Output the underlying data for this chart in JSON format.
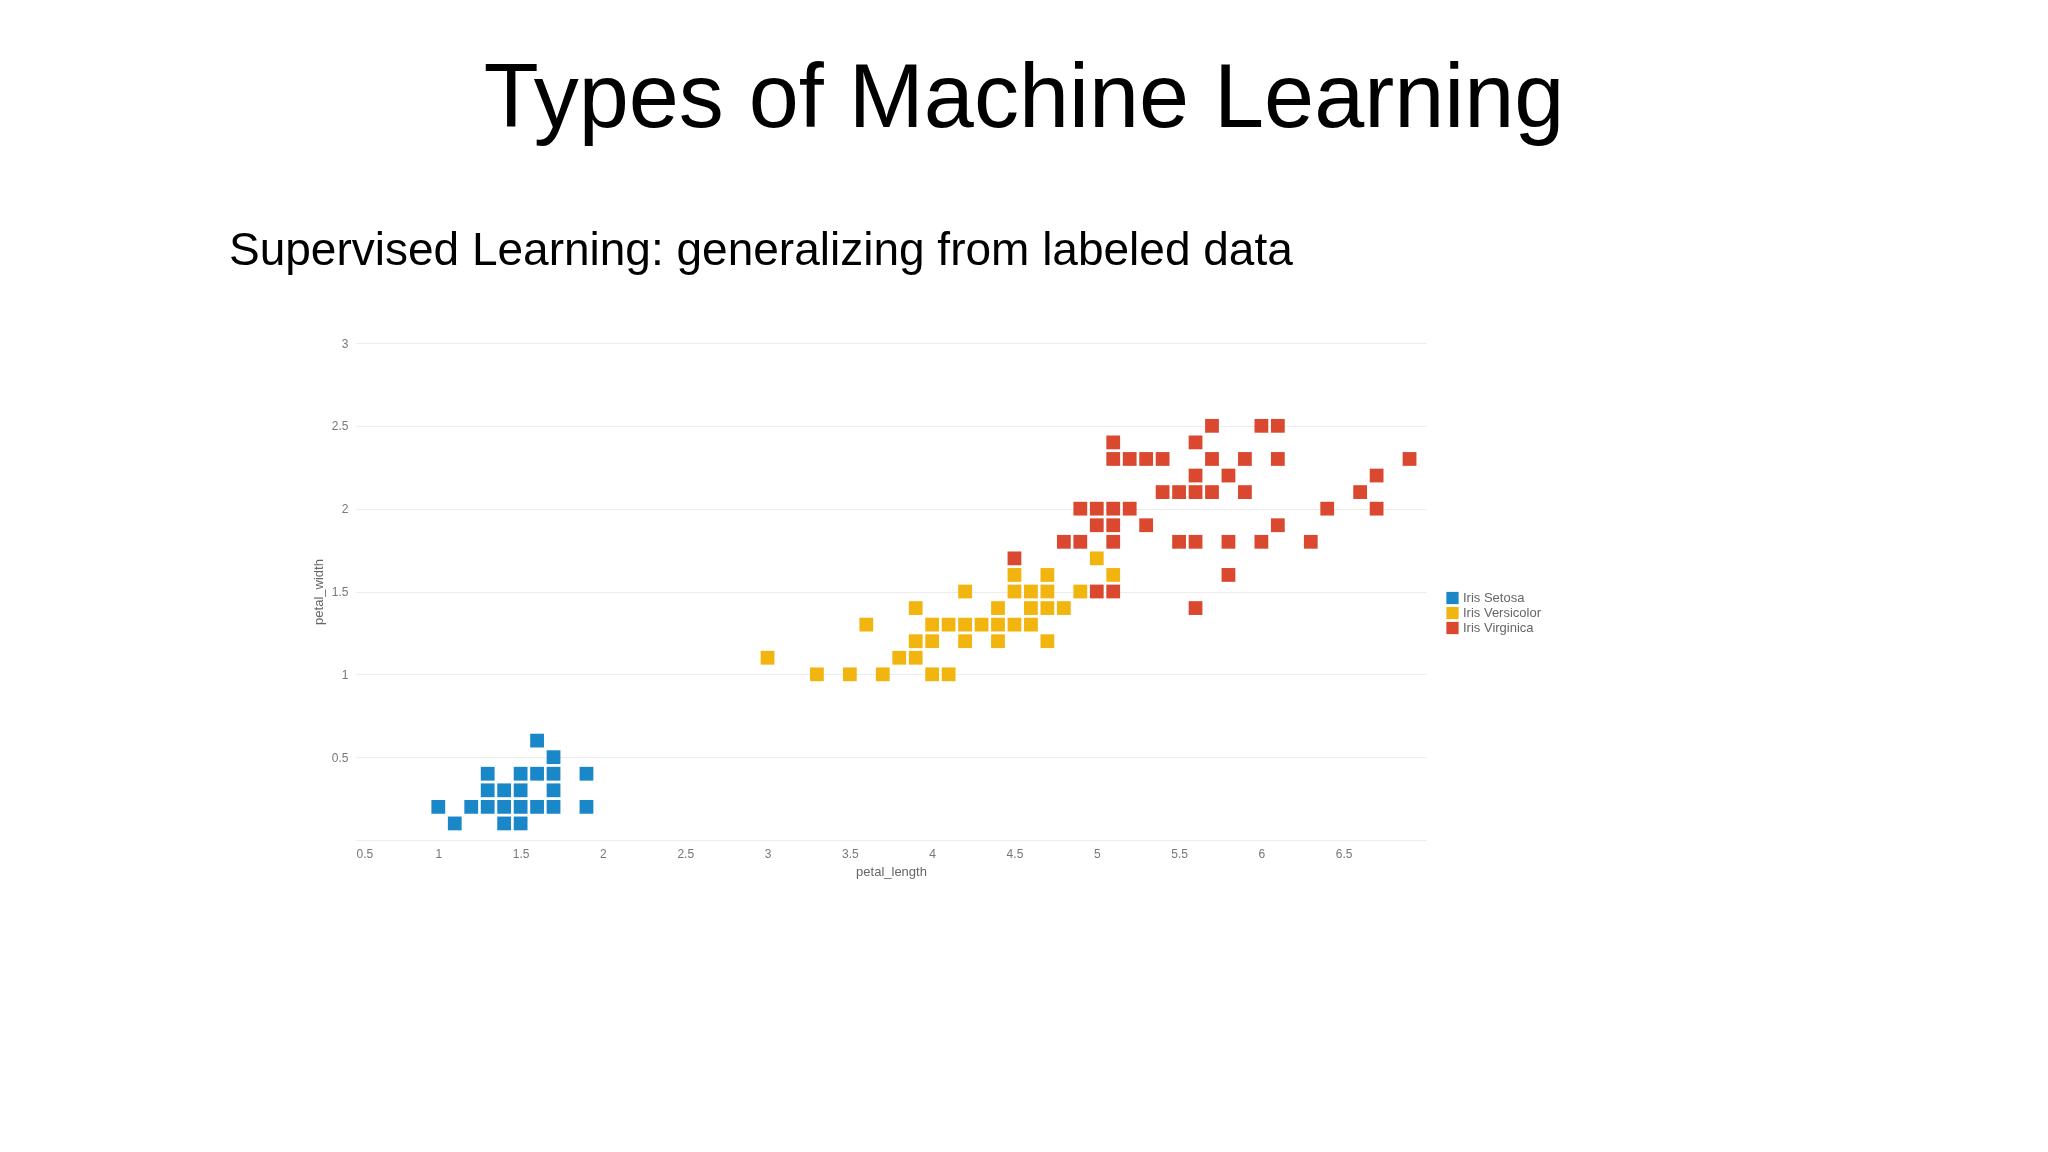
{
  "chart_data": {
    "type": "scatter",
    "title": "Types of Machine Learning",
    "subtitle": "Supervised Learning:  generalizing from labeled data",
    "xlabel": "petal_length",
    "ylabel": "petal_width",
    "xlim": [
      0.5,
      7
    ],
    "xticks": [
      0.5,
      1,
      1.5,
      2,
      2.5,
      3,
      3.5,
      4,
      4.5,
      5,
      5.5,
      6,
      6.5
    ],
    "ylim": [
      0,
      3
    ],
    "yticks": [
      {
        "value": 0,
        "label": null
      },
      0.5,
      1,
      1.5,
      2,
      2.5,
      3
    ],
    "grid": "y",
    "legend": "right",
    "marker": "square",
    "series": [
      {
        "name": "Iris Setosa",
        "color": "#1a87c8",
        "x": [
          1.0,
          1.1,
          1.2,
          1.3,
          1.3,
          1.3,
          1.4,
          1.4,
          1.4,
          1.5,
          1.5,
          1.5,
          1.5,
          1.6,
          1.6,
          1.6,
          1.7,
          1.7,
          1.7,
          1.7,
          1.9,
          1.9
        ],
        "values": [
          0.2,
          0.1,
          0.2,
          0.2,
          0.3,
          0.4,
          0.1,
          0.2,
          0.3,
          0.1,
          0.2,
          0.3,
          0.4,
          0.2,
          0.4,
          0.6,
          0.2,
          0.3,
          0.4,
          0.5,
          0.2,
          0.4
        ]
      },
      {
        "name": "Iris Versicolor",
        "color": "#f2b50f",
        "x": [
          3.3,
          3.5,
          3.7,
          4.0,
          4.1,
          3.0,
          3.8,
          3.9,
          3.9,
          4.0,
          4.2,
          4.4,
          4.7,
          3.6,
          4.0,
          4.1,
          4.2,
          4.3,
          4.4,
          4.5,
          4.6,
          3.9,
          4.4,
          4.6,
          4.7,
          4.8,
          4.2,
          4.5,
          4.6,
          4.7,
          4.9,
          4.5,
          4.7,
          5.1,
          5.0
        ],
        "values": [
          1.0,
          1.0,
          1.0,
          1.0,
          1.0,
          1.1,
          1.1,
          1.1,
          1.2,
          1.2,
          1.2,
          1.2,
          1.2,
          1.3,
          1.3,
          1.3,
          1.3,
          1.3,
          1.3,
          1.3,
          1.3,
          1.4,
          1.4,
          1.4,
          1.4,
          1.4,
          1.5,
          1.5,
          1.5,
          1.5,
          1.5,
          1.6,
          1.6,
          1.6,
          1.7
        ]
      },
      {
        "name": "Iris Virginica",
        "color": "#d9482f",
        "x": [
          5.6,
          5.0,
          5.1,
          5.8,
          4.5,
          4.8,
          4.9,
          5.1,
          5.5,
          5.6,
          5.8,
          6.0,
          6.3,
          5.0,
          5.1,
          5.3,
          6.1,
          4.9,
          5.0,
          5.1,
          5.2,
          6.4,
          6.7,
          5.4,
          5.5,
          5.6,
          5.7,
          5.9,
          6.6,
          5.6,
          5.8,
          6.7,
          5.1,
          5.2,
          5.3,
          5.4,
          5.7,
          5.9,
          6.1,
          6.9,
          5.1,
          5.6,
          5.7,
          6.0,
          6.1
        ],
        "values": [
          1.4,
          1.5,
          1.5,
          1.6,
          1.7,
          1.8,
          1.8,
          1.8,
          1.8,
          1.8,
          1.8,
          1.8,
          1.8,
          1.9,
          1.9,
          1.9,
          1.9,
          2.0,
          2.0,
          2.0,
          2.0,
          2.0,
          2.0,
          2.1,
          2.1,
          2.1,
          2.1,
          2.1,
          2.1,
          2.2,
          2.2,
          2.2,
          2.3,
          2.3,
          2.3,
          2.3,
          2.3,
          2.3,
          2.3,
          2.3,
          2.4,
          2.4,
          2.5,
          2.5,
          2.5
        ]
      }
    ]
  }
}
